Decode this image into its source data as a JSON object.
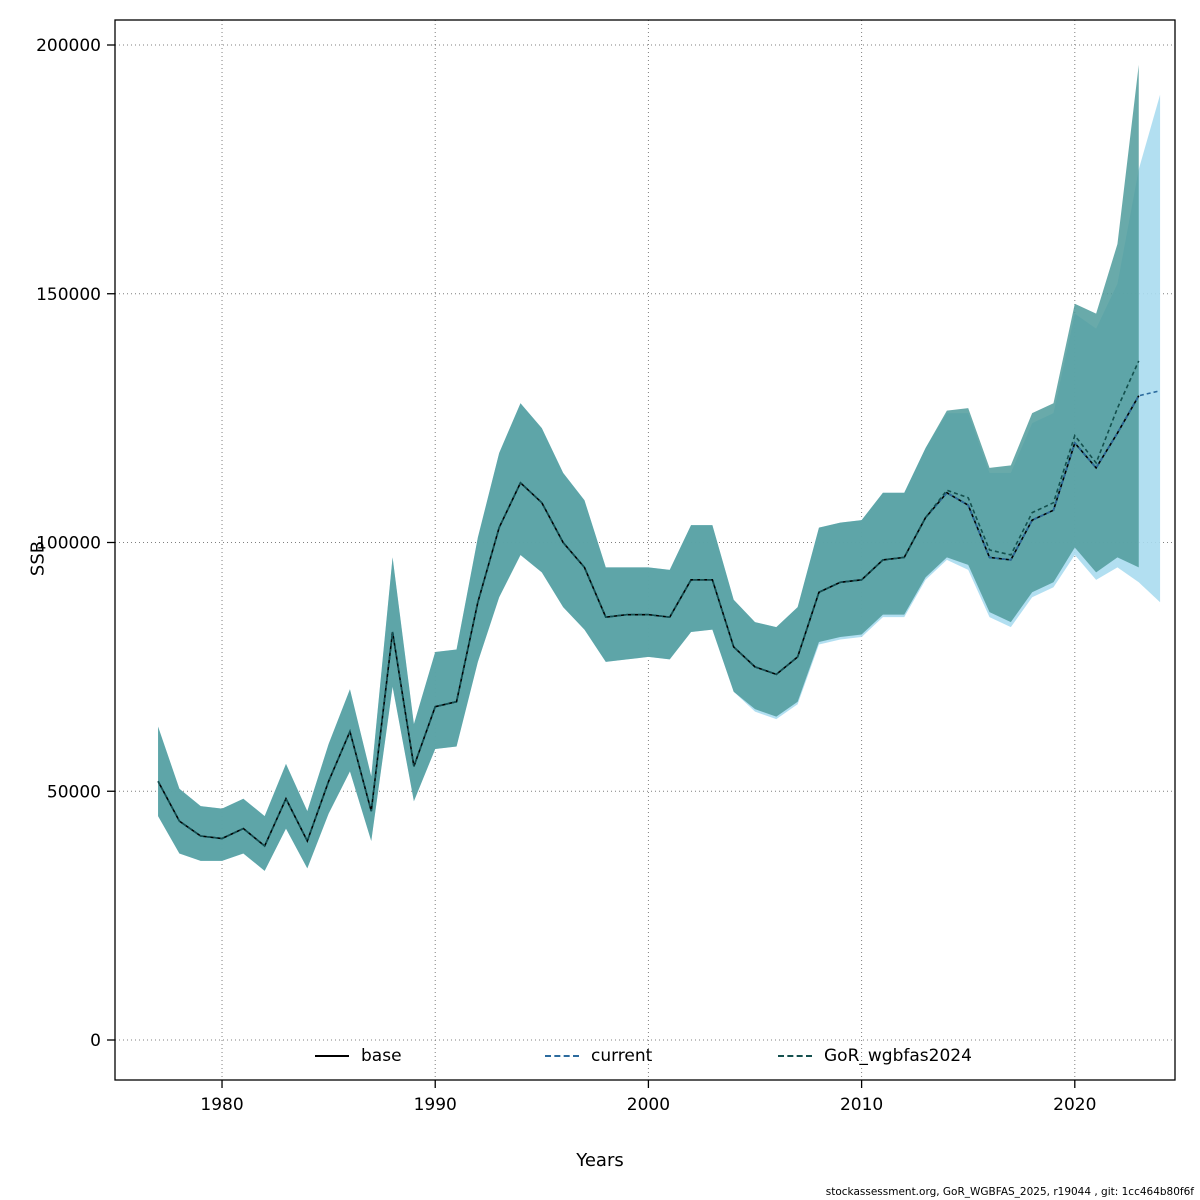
{
  "footer": "stockassessment.org, GoR_WGBFAS_2025, r19044 , git: 1cc464b80f6f",
  "legend": {
    "base_label": "base",
    "current_label": "current",
    "gor_label": "GoR_wgbfas2024"
  },
  "chart_data": {
    "type": "line",
    "title": "",
    "xlabel": "Years",
    "ylabel": "SSB",
    "xlim": [
      1974.98,
      2024.7
    ],
    "ylim": [
      0,
      200000
    ],
    "xticks": [
      1980,
      1990,
      2000,
      2010,
      2020
    ],
    "yticks": [
      0,
      50000,
      100000,
      150000,
      200000
    ],
    "grid": true,
    "grid_color": "#7f7f7f",
    "legend_position": "bottom-inside",
    "series": [
      {
        "name": "base",
        "color": "#000000",
        "dash": "solid",
        "years": [
          1977,
          1978,
          1979,
          1980,
          1981,
          1982,
          1983,
          1984,
          1985,
          1986,
          1987,
          1988,
          1989,
          1990,
          1991,
          1992,
          1993,
          1994,
          1995,
          1996,
          1997,
          1998,
          1999,
          2000,
          2001,
          2002,
          2003,
          2004,
          2005,
          2006,
          2007,
          2008,
          2009,
          2010,
          2011,
          2012,
          2013,
          2014,
          2015,
          2016,
          2017,
          2018,
          2019,
          2020,
          2021,
          2022,
          2023
        ],
        "values": [
          52000,
          44000,
          41000,
          40500,
          42500,
          39000,
          48500,
          40000,
          52000,
          62000,
          46000,
          82000,
          55000,
          67000,
          68000,
          88000,
          103000,
          112000,
          108000,
          100000,
          95000,
          85000,
          85500,
          85500,
          85000,
          92500,
          92500,
          79000,
          75000,
          73500,
          77000,
          90000,
          92000,
          92500,
          96500,
          97000,
          105000,
          110000,
          107500,
          97000,
          96500,
          104500,
          106500,
          120000,
          115000,
          122000,
          129500
        ]
      },
      {
        "name": "current",
        "color": "#2c6b9e",
        "dash": "dashed",
        "band_color": "#aadcf0",
        "band_opacity": 0.9,
        "years": [
          1977,
          1978,
          1979,
          1980,
          1981,
          1982,
          1983,
          1984,
          1985,
          1986,
          1987,
          1988,
          1989,
          1990,
          1991,
          1992,
          1993,
          1994,
          1995,
          1996,
          1997,
          1998,
          1999,
          2000,
          2001,
          2002,
          2003,
          2004,
          2005,
          2006,
          2007,
          2008,
          2009,
          2010,
          2011,
          2012,
          2013,
          2014,
          2015,
          2016,
          2017,
          2018,
          2019,
          2020,
          2021,
          2022,
          2023,
          2024
        ],
        "values": [
          52000,
          44000,
          41000,
          40500,
          42500,
          39000,
          48500,
          40000,
          52000,
          62000,
          46000,
          82000,
          55000,
          67000,
          68000,
          88000,
          103000,
          112000,
          108000,
          100000,
          95000,
          85000,
          85500,
          85500,
          85000,
          92500,
          92500,
          79000,
          75000,
          73500,
          77000,
          90000,
          92000,
          92500,
          96500,
          97000,
          105000,
          110000,
          107500,
          97000,
          96500,
          104500,
          106500,
          120000,
          115000,
          122000,
          129500,
          130500
        ],
        "lo": [
          45000,
          37500,
          36000,
          36000,
          37500,
          34000,
          42500,
          34500,
          45500,
          54000,
          40000,
          71000,
          48000,
          58500,
          59000,
          76000,
          89000,
          97500,
          94000,
          87000,
          82500,
          76000,
          76500,
          77000,
          76500,
          82000,
          82500,
          70000,
          66000,
          64500,
          67500,
          79500,
          80500,
          81000,
          85000,
          85000,
          92500,
          96500,
          94500,
          85000,
          83000,
          89000,
          91000,
          97500,
          92500,
          95000,
          92000,
          88000
        ],
        "hi": [
          63000,
          50500,
          47000,
          46500,
          48500,
          45000,
          55500,
          46000,
          59500,
          70500,
          53000,
          97000,
          63500,
          78000,
          78500,
          101000,
          118000,
          128000,
          123000,
          114000,
          108500,
          95000,
          95000,
          95000,
          94500,
          103500,
          103500,
          88500,
          84000,
          83000,
          87000,
          103000,
          104000,
          104500,
          110000,
          110000,
          119000,
          126000,
          126000,
          114000,
          114000,
          124000,
          126000,
          146000,
          143000,
          152000,
          175000,
          190000
        ]
      },
      {
        "name": "GoR_wgbfas2024",
        "color": "#14504e",
        "dash": "dashed",
        "band_color": "#4f9b9b",
        "band_opacity": 0.85,
        "years": [
          1977,
          1978,
          1979,
          1980,
          1981,
          1982,
          1983,
          1984,
          1985,
          1986,
          1987,
          1988,
          1989,
          1990,
          1991,
          1992,
          1993,
          1994,
          1995,
          1996,
          1997,
          1998,
          1999,
          2000,
          2001,
          2002,
          2003,
          2004,
          2005,
          2006,
          2007,
          2008,
          2009,
          2010,
          2011,
          2012,
          2013,
          2014,
          2015,
          2016,
          2017,
          2018,
          2019,
          2020,
          2021,
          2022,
          2023
        ],
        "values": [
          52000,
          44000,
          41000,
          40500,
          42500,
          39000,
          48500,
          40000,
          52000,
          62000,
          46000,
          82000,
          55000,
          67000,
          68000,
          88000,
          103000,
          112000,
          108000,
          100000,
          95000,
          85000,
          85500,
          85500,
          85000,
          92500,
          92500,
          79000,
          75000,
          73500,
          77000,
          90000,
          92000,
          92500,
          96500,
          97000,
          105000,
          110500,
          109000,
          98500,
          97500,
          106000,
          108000,
          121500,
          116000,
          127000,
          136500
        ],
        "lo": [
          45000,
          37500,
          36000,
          36000,
          37500,
          34000,
          42500,
          34500,
          45500,
          54000,
          40000,
          71000,
          48000,
          58500,
          59000,
          76000,
          89000,
          97500,
          94000,
          87000,
          82500,
          76000,
          76500,
          77000,
          76500,
          82000,
          82500,
          70000,
          66500,
          65000,
          68000,
          80000,
          81000,
          81500,
          85500,
          85500,
          93000,
          97000,
          95500,
          86000,
          84000,
          90000,
          92000,
          99000,
          94000,
          97000,
          95000
        ],
        "hi": [
          63000,
          50500,
          47000,
          46500,
          48500,
          45000,
          55500,
          46000,
          59500,
          70500,
          53000,
          97000,
          63500,
          78000,
          78500,
          101000,
          118000,
          128000,
          123000,
          114000,
          108500,
          95000,
          95000,
          95000,
          94500,
          103500,
          103500,
          88500,
          84000,
          83000,
          87000,
          103000,
          104000,
          104500,
          110000,
          110000,
          119000,
          126500,
          127000,
          115000,
          115500,
          126000,
          128000,
          148000,
          146000,
          160000,
          196000
        ]
      }
    ]
  }
}
